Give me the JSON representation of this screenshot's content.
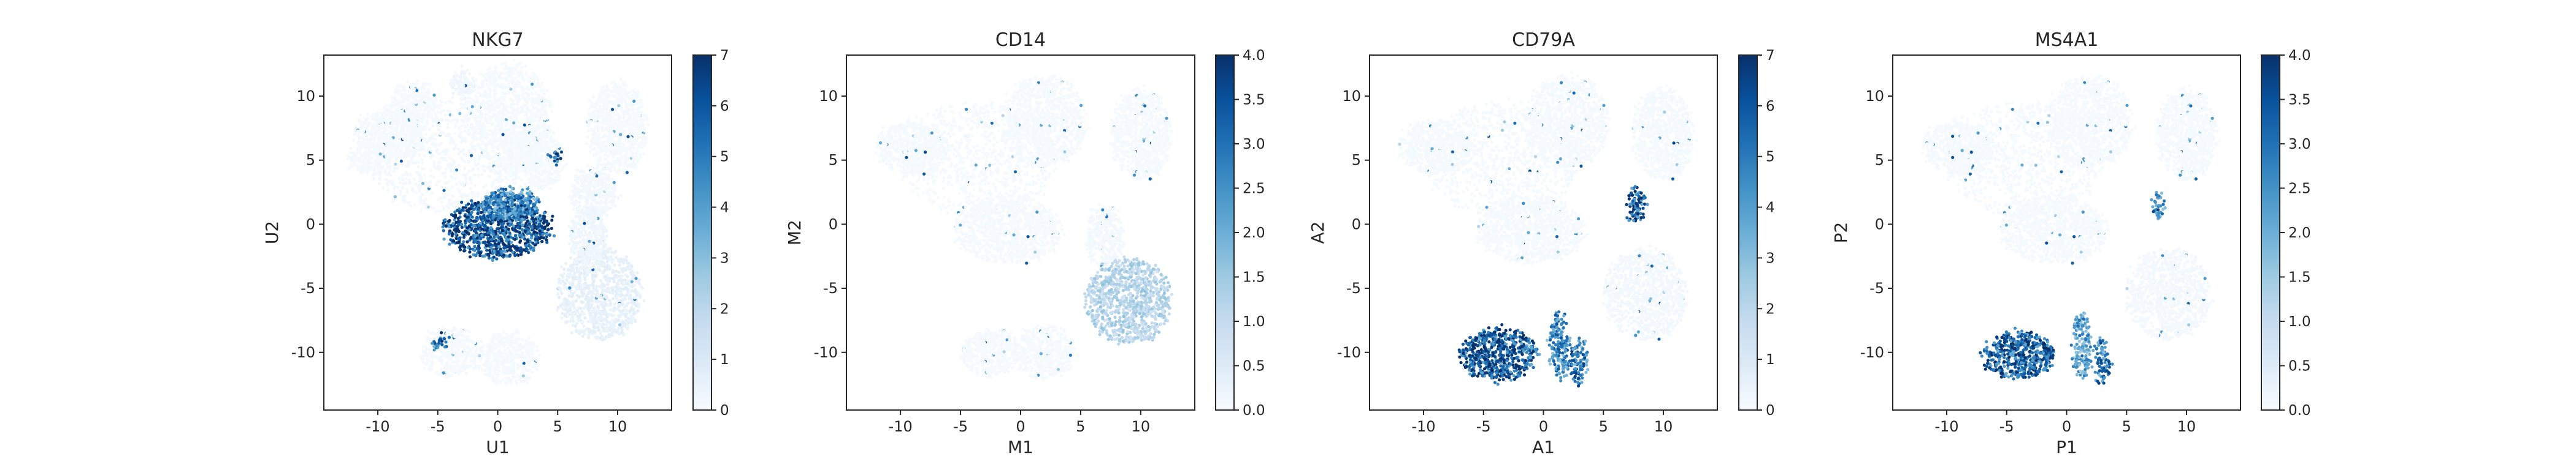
{
  "chart_data": [
    {
      "type": "scatter",
      "title": "NKG7",
      "xlabel": "U1",
      "ylabel": "U2",
      "xlim": [
        -14.5,
        14.5
      ],
      "ylim": [
        -14.5,
        13.2
      ],
      "xticks": [
        "-10",
        "-5",
        "0",
        "5",
        "10"
      ],
      "yticks": [
        "-10",
        "-5",
        "0",
        "5",
        "10"
      ],
      "colorbar": {
        "cmap": "Blues",
        "min": 0,
        "max": 7,
        "ticks": [
          "0",
          "1",
          "2",
          "3",
          "4",
          "5",
          "6",
          "7"
        ]
      },
      "clusters": [
        {
          "name": "upper-left-main",
          "cx": -4.5,
          "cy": 5.5,
          "rx": 6.5,
          "ry": 4.5,
          "value": 0.15
        },
        {
          "name": "upper-left-arm",
          "cx": -9,
          "cy": 7,
          "rx": 3,
          "ry": 2,
          "value": 0.1
        },
        {
          "name": "upper-spur",
          "cx": -7,
          "cy": 9.5,
          "rx": 2,
          "ry": 1.5,
          "value": 0.1
        },
        {
          "name": "top-center-arm",
          "cx": 1,
          "cy": 8.5,
          "rx": 3.5,
          "ry": 4,
          "value": 0.1
        },
        {
          "name": "right-of-center",
          "cx": 3,
          "cy": 5,
          "rx": 2.5,
          "ry": 2.5,
          "value": 0.1
        },
        {
          "name": "top-right",
          "cx": 10,
          "cy": 7.5,
          "rx": 2.5,
          "ry": 3.5,
          "value": 0.1
        },
        {
          "name": "mid-right-upper",
          "cx": 8,
          "cy": 2.5,
          "rx": 2,
          "ry": 2,
          "value": 0.2
        },
        {
          "name": "nk-cluster",
          "cx": 0,
          "cy": -0.3,
          "rx": 4.5,
          "ry": 2.3,
          "value": 6.8
        },
        {
          "name": "nk-cluster-upper",
          "cx": 1,
          "cy": 1.5,
          "rx": 2.5,
          "ry": 1.2,
          "value": 5.0
        },
        {
          "name": "lower-right-mono",
          "cx": 8.5,
          "cy": -5.5,
          "rx": 3.5,
          "ry": 3.5,
          "value": 0.6
        },
        {
          "name": "right-strand",
          "cx": 7.5,
          "cy": -1,
          "rx": 1.5,
          "ry": 2.5,
          "value": 0.3
        },
        {
          "name": "lower-left-b",
          "cx": -4,
          "cy": -10,
          "rx": 2.5,
          "ry": 1.8,
          "value": 0.1
        },
        {
          "name": "lower-center-b",
          "cx": 1,
          "cy": -10.5,
          "rx": 2.5,
          "ry": 2,
          "value": 0.1
        },
        {
          "name": "left-tip",
          "cx": -11,
          "cy": 5,
          "rx": 1.5,
          "ry": 1,
          "value": 0.1
        },
        {
          "name": "small-upper-island",
          "cx": -3,
          "cy": 11,
          "rx": 1,
          "ry": 1,
          "value": 0.3
        },
        {
          "name": "small-right-island",
          "cx": 4.8,
          "cy": 5.3,
          "rx": 0.4,
          "ry": 0.5,
          "value": 6.0
        },
        {
          "name": "small-lower-island",
          "cx": -4.7,
          "cy": -9.3,
          "rx": 0.6,
          "ry": 0.5,
          "value": 6.0
        }
      ]
    },
    {
      "type": "scatter",
      "title": "CD14",
      "xlabel": "M1",
      "ylabel": "M2",
      "xlim": [
        -14.5,
        14.5
      ],
      "ylim": [
        -14.5,
        13.2
      ],
      "xticks": [
        "-10",
        "-5",
        "0",
        "5",
        "10"
      ],
      "yticks": [
        "-10",
        "-5",
        "0",
        "5",
        "10"
      ],
      "colorbar": {
        "cmap": "Blues",
        "min": 0,
        "max": 4,
        "ticks": [
          "0.0",
          "0.5",
          "1.0",
          "1.5",
          "2.0",
          "2.5",
          "3.0",
          "3.5",
          "4.0"
        ]
      },
      "clusters": [
        {
          "name": "upper-left-main",
          "cx": -3.5,
          "cy": 5,
          "rx": 6.5,
          "ry": 4.5,
          "value": 0.05
        },
        {
          "name": "upper-left-arm",
          "cx": -9,
          "cy": 6,
          "rx": 3,
          "ry": 2,
          "value": 0.05
        },
        {
          "name": "top-center-arm",
          "cx": 2,
          "cy": 8,
          "rx": 3.5,
          "ry": 3.5,
          "value": 0.05
        },
        {
          "name": "top-right",
          "cx": 10,
          "cy": 7,
          "rx": 2.5,
          "ry": 3.5,
          "value": 0.05
        },
        {
          "name": "center-body",
          "cx": -1,
          "cy": -0.5,
          "rx": 4.5,
          "ry": 2.5,
          "value": 0.05
        },
        {
          "name": "right-strand",
          "cx": 7,
          "cy": -1,
          "rx": 1.5,
          "ry": 2.5,
          "value": 0.1
        },
        {
          "name": "mono-cluster",
          "cx": 9,
          "cy": -6,
          "rx": 3.5,
          "ry": 3.3,
          "value": 1.3
        },
        {
          "name": "lower-left-b",
          "cx": -2.5,
          "cy": -10,
          "rx": 2.5,
          "ry": 1.8,
          "value": 0.05
        },
        {
          "name": "lower-center-b",
          "cx": 2,
          "cy": -10,
          "rx": 2.5,
          "ry": 2,
          "value": 0.05
        }
      ]
    },
    {
      "type": "scatter",
      "title": "CD79A",
      "xlabel": "A1",
      "ylabel": "A2",
      "xlim": [
        -14.5,
        14.5
      ],
      "ylim": [
        -14.5,
        13.2
      ],
      "xticks": [
        "-10",
        "-5",
        "0",
        "5",
        "10"
      ],
      "yticks": [
        "-10",
        "-5",
        "0",
        "5",
        "10"
      ],
      "colorbar": {
        "cmap": "Blues",
        "min": 0,
        "max": 7,
        "ticks": [
          "0",
          "1",
          "2",
          "3",
          "4",
          "5",
          "6",
          "7"
        ]
      },
      "clusters": [
        {
          "name": "upper-left-main",
          "cx": -3.5,
          "cy": 5,
          "rx": 6.5,
          "ry": 4.5,
          "value": 0.1
        },
        {
          "name": "upper-left-arm",
          "cx": -9,
          "cy": 6,
          "rx": 3,
          "ry": 2,
          "value": 0.1
        },
        {
          "name": "top-center-arm",
          "cx": 2,
          "cy": 8,
          "rx": 3.5,
          "ry": 3.5,
          "value": 0.1
        },
        {
          "name": "top-right",
          "cx": 10,
          "cy": 7,
          "rx": 2.5,
          "ry": 3.5,
          "value": 0.1
        },
        {
          "name": "center-body",
          "cx": -1,
          "cy": -0.5,
          "rx": 4.5,
          "ry": 2.5,
          "value": 0.1
        },
        {
          "name": "lower-right",
          "cx": 8.5,
          "cy": -5.5,
          "rx": 3.5,
          "ry": 3.5,
          "value": 0.2
        },
        {
          "name": "b-island",
          "cx": 7.7,
          "cy": 1.5,
          "rx": 0.7,
          "ry": 1.4,
          "value": 6.5
        },
        {
          "name": "b-cluster",
          "cx": -3.8,
          "cy": -10.2,
          "rx": 3.2,
          "ry": 2.0,
          "value": 6.5
        },
        {
          "name": "b-strand",
          "cx": 1.3,
          "cy": -9.5,
          "rx": 0.8,
          "ry": 2.5,
          "value": 5.0
        },
        {
          "name": "b-tail",
          "cx": 3,
          "cy": -10.8,
          "rx": 0.6,
          "ry": 1.8,
          "value": 5.5
        }
      ]
    },
    {
      "type": "scatter",
      "title": "MS4A1",
      "xlabel": "P1",
      "ylabel": "P2",
      "xlim": [
        -14.5,
        14.5
      ],
      "ylim": [
        -14.5,
        13.2
      ],
      "xticks": [
        "-10",
        "-5",
        "0",
        "5",
        "10"
      ],
      "yticks": [
        "-10",
        "-5",
        "0",
        "5",
        "10"
      ],
      "colorbar": {
        "cmap": "Blues",
        "min": 0,
        "max": 4,
        "ticks": [
          "0.0",
          "0.5",
          "1.0",
          "1.5",
          "2.0",
          "2.5",
          "3.0",
          "3.5",
          "4.0"
        ]
      },
      "clusters": [
        {
          "name": "upper-left-main",
          "cx": -3.5,
          "cy": 5,
          "rx": 6.5,
          "ry": 4.5,
          "value": 0.05
        },
        {
          "name": "upper-left-arm",
          "cx": -9,
          "cy": 6,
          "rx": 3,
          "ry": 2,
          "value": 0.05
        },
        {
          "name": "top-center-arm",
          "cx": 2,
          "cy": 8,
          "rx": 3.5,
          "ry": 3.5,
          "value": 0.05
        },
        {
          "name": "top-right",
          "cx": 10,
          "cy": 7,
          "rx": 2.5,
          "ry": 3.5,
          "value": 0.05
        },
        {
          "name": "center-body",
          "cx": -1,
          "cy": -0.5,
          "rx": 4.5,
          "ry": 2.5,
          "value": 0.05
        },
        {
          "name": "lower-right",
          "cx": 8.5,
          "cy": -5.5,
          "rx": 3.5,
          "ry": 3.5,
          "value": 0.1
        },
        {
          "name": "b-island",
          "cx": 7.7,
          "cy": 1.5,
          "rx": 0.5,
          "ry": 1.0,
          "value": 3.0
        },
        {
          "name": "b-cluster",
          "cx": -4,
          "cy": -10.2,
          "rx": 3.0,
          "ry": 1.8,
          "value": 3.6
        },
        {
          "name": "b-strand",
          "cx": 1.3,
          "cy": -9.5,
          "rx": 0.7,
          "ry": 2.5,
          "value": 2.5
        },
        {
          "name": "b-tail",
          "cx": 3,
          "cy": -10.8,
          "rx": 0.5,
          "ry": 1.8,
          "value": 3.0
        }
      ]
    }
  ]
}
